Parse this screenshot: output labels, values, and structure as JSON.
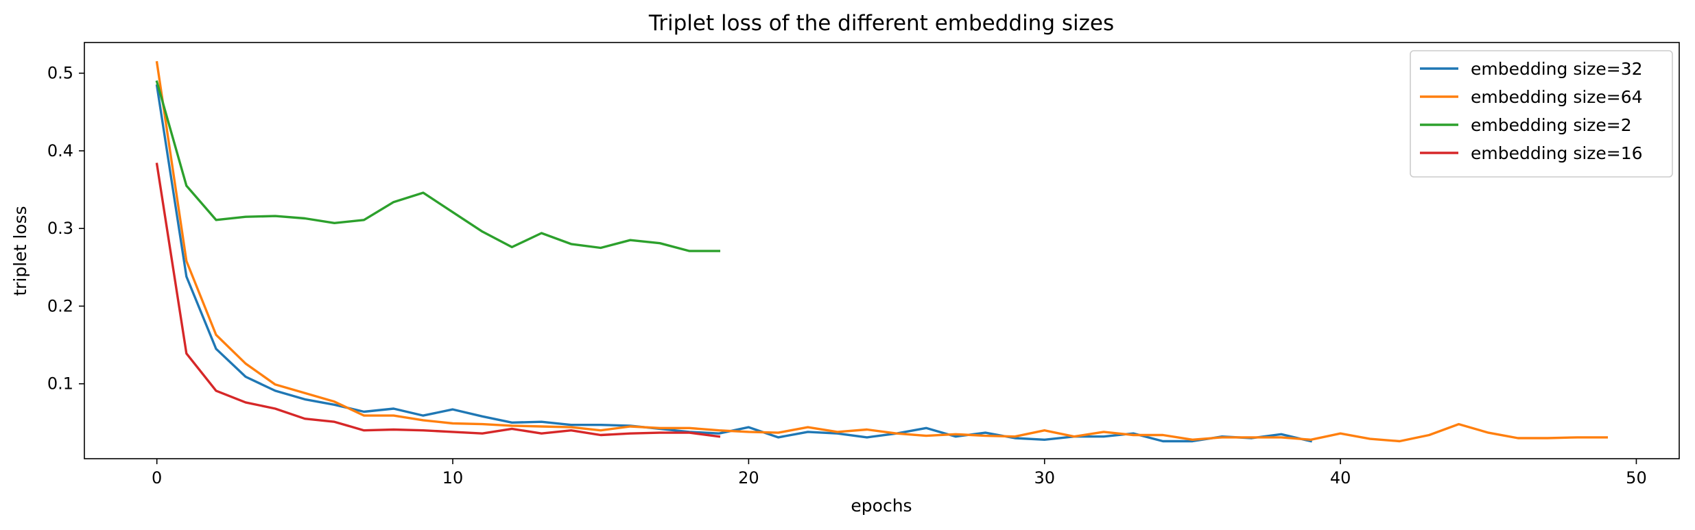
{
  "chart_data": {
    "type": "line",
    "title": "Triplet loss of the different embedding sizes",
    "xlabel": "epochs",
    "ylabel": "triplet loss",
    "xlim": [
      -2.45,
      51.45
    ],
    "ylim": [
      0.0035,
      0.5395
    ],
    "x_ticks": [
      0,
      10,
      20,
      30,
      40,
      50
    ],
    "y_ticks": [
      0.1,
      0.2,
      0.3,
      0.4,
      0.5
    ],
    "x_tick_labels": [
      "0",
      "10",
      "20",
      "30",
      "40",
      "50"
    ],
    "y_tick_labels": [
      "0.1",
      "0.2",
      "0.3",
      "0.4",
      "0.5"
    ],
    "grid": false,
    "legend_position": "upper right",
    "series": [
      {
        "name": "embedding size=32",
        "color": "#1f77b4",
        "x": [
          0,
          1,
          2,
          3,
          4,
          5,
          6,
          7,
          8,
          9,
          10,
          11,
          12,
          13,
          14,
          15,
          16,
          17,
          18,
          19,
          20,
          21,
          22,
          23,
          24,
          25,
          26,
          27,
          28,
          29,
          30,
          31,
          32,
          33,
          34,
          35,
          36,
          37,
          38,
          39
        ],
        "values": [
          0.484,
          0.238,
          0.145,
          0.109,
          0.091,
          0.08,
          0.073,
          0.064,
          0.068,
          0.059,
          0.067,
          0.058,
          0.05,
          0.051,
          0.047,
          0.047,
          0.046,
          0.042,
          0.038,
          0.036,
          0.044,
          0.031,
          0.038,
          0.036,
          0.031,
          0.036,
          0.043,
          0.032,
          0.037,
          0.03,
          0.028,
          0.032,
          0.032,
          0.036,
          0.026,
          0.026,
          0.032,
          0.03,
          0.035,
          0.026
        ]
      },
      {
        "name": "embedding size=64",
        "color": "#ff7f0e",
        "x": [
          0,
          1,
          2,
          3,
          4,
          5,
          6,
          7,
          8,
          9,
          10,
          11,
          12,
          13,
          14,
          15,
          16,
          17,
          18,
          19,
          20,
          21,
          22,
          23,
          24,
          25,
          26,
          27,
          28,
          29,
          30,
          31,
          32,
          33,
          34,
          35,
          36,
          37,
          38,
          39,
          40,
          41,
          42,
          43,
          44,
          45,
          46,
          47,
          48,
          49
        ],
        "values": [
          0.514,
          0.258,
          0.163,
          0.126,
          0.099,
          0.088,
          0.077,
          0.059,
          0.059,
          0.053,
          0.049,
          0.048,
          0.046,
          0.045,
          0.044,
          0.04,
          0.045,
          0.043,
          0.043,
          0.04,
          0.038,
          0.037,
          0.044,
          0.038,
          0.041,
          0.036,
          0.033,
          0.035,
          0.033,
          0.032,
          0.04,
          0.032,
          0.038,
          0.034,
          0.034,
          0.028,
          0.031,
          0.031,
          0.031,
          0.028,
          0.036,
          0.029,
          0.026,
          0.034,
          0.048,
          0.037,
          0.03,
          0.03,
          0.031,
          0.031
        ]
      },
      {
        "name": "embedding size=2",
        "color": "#2ca02c",
        "x": [
          0,
          1,
          2,
          3,
          4,
          5,
          6,
          7,
          8,
          9,
          10,
          11,
          12,
          13,
          14,
          15,
          16,
          17,
          18,
          19
        ],
        "values": [
          0.489,
          0.355,
          0.311,
          0.315,
          0.316,
          0.313,
          0.307,
          0.311,
          0.334,
          0.346,
          0.321,
          0.296,
          0.276,
          0.294,
          0.28,
          0.275,
          0.285,
          0.281,
          0.271,
          0.271
        ]
      },
      {
        "name": "embedding size=16",
        "color": "#d62728",
        "x": [
          0,
          1,
          2,
          3,
          4,
          5,
          6,
          7,
          8,
          9,
          10,
          11,
          12,
          13,
          14,
          15,
          16,
          17,
          18,
          19
        ],
        "values": [
          0.383,
          0.139,
          0.091,
          0.076,
          0.068,
          0.055,
          0.051,
          0.04,
          0.041,
          0.04,
          0.038,
          0.036,
          0.042,
          0.036,
          0.04,
          0.034,
          0.036,
          0.037,
          0.037,
          0.032
        ]
      }
    ]
  }
}
